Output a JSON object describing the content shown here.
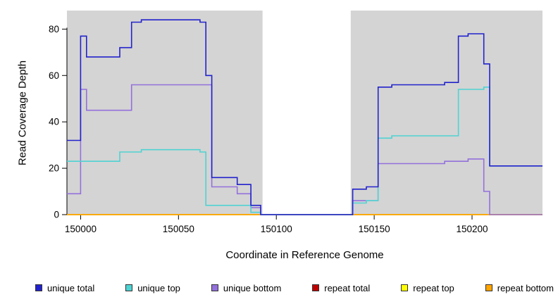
{
  "figure": {
    "xlabel": "Coordinate in Reference Genome",
    "ylabel": "Read Coverage Depth"
  },
  "legend": {
    "items": [
      {
        "label": "unique total",
        "color": "#2222CC"
      },
      {
        "label": "unique top",
        "color": "#4FD2D2"
      },
      {
        "label": "unique bottom",
        "color": "#9370DB"
      },
      {
        "label": "repeat total",
        "color": "#C00000"
      },
      {
        "label": "repeat top",
        "color": "#FFFF00"
      },
      {
        "label": "repeat bottom",
        "color": "#FFA500"
      }
    ]
  },
  "chart_data": {
    "type": "line",
    "step": true,
    "title": "",
    "xlabel": "Coordinate in Reference Genome",
    "ylabel": "Read Coverage Depth",
    "xlim": [
      149993,
      150236
    ],
    "ylim": [
      0,
      88
    ],
    "xticks": [
      150000,
      150050,
      150100,
      150150,
      150200
    ],
    "xtick_labels": [
      "150000",
      "150050",
      "150100",
      "150150",
      "150200"
    ],
    "yticks": [
      0,
      20,
      40,
      60,
      80
    ],
    "ytick_labels": [
      "0",
      "20",
      "40",
      "60",
      "80"
    ],
    "grid": false,
    "legend_position": "bottom",
    "plot_background": "#D4D4D4",
    "gap_region": {
      "x0": 150093,
      "x1": 150138,
      "color": "#FFFFFF"
    },
    "background_regions": [
      {
        "x0": 149993,
        "x1": 150093,
        "color": "#D4D4D4"
      },
      {
        "x0": 150093,
        "x1": 150138,
        "color": "#FFFFFF"
      },
      {
        "x0": 150138,
        "x1": 150236,
        "color": "#D4D4D4"
      }
    ],
    "series": [
      {
        "name": "repeat total",
        "color": "#C00000",
        "points": [
          [
            149993,
            0
          ],
          [
            150236,
            0
          ]
        ]
      },
      {
        "name": "repeat top",
        "color": "#FFFF00",
        "points": [
          [
            149993,
            0
          ],
          [
            150236,
            0
          ]
        ]
      },
      {
        "name": "repeat bottom",
        "color": "#FFA500",
        "points": [
          [
            149993,
            0
          ],
          [
            150236,
            0
          ]
        ]
      },
      {
        "name": "unique bottom",
        "color": "#9370DB",
        "points": [
          [
            149993,
            9
          ],
          [
            150000,
            54
          ],
          [
            150003,
            45
          ],
          [
            150026,
            56
          ],
          [
            150067,
            12
          ],
          [
            150080,
            9
          ],
          [
            150087,
            3
          ],
          [
            150092,
            0
          ],
          [
            150139,
            6
          ],
          [
            150152,
            22
          ],
          [
            150186,
            23
          ],
          [
            150198,
            24
          ],
          [
            150206,
            10
          ],
          [
            150209,
            0
          ],
          [
            150236,
            0
          ]
        ]
      },
      {
        "name": "unique top",
        "color": "#4FD2D2",
        "points": [
          [
            149993,
            23
          ],
          [
            150020,
            27
          ],
          [
            150031,
            28
          ],
          [
            150061,
            27
          ],
          [
            150064,
            4
          ],
          [
            150087,
            1
          ],
          [
            150092,
            0
          ],
          [
            150139,
            5
          ],
          [
            150146,
            6
          ],
          [
            150152,
            33
          ],
          [
            150159,
            34
          ],
          [
            150193,
            54
          ],
          [
            150206,
            55
          ],
          [
            150209,
            21
          ],
          [
            150236,
            21
          ]
        ]
      },
      {
        "name": "unique total",
        "color": "#2222CC",
        "points": [
          [
            149993,
            32
          ],
          [
            150000,
            77
          ],
          [
            150003,
            68
          ],
          [
            150020,
            72
          ],
          [
            150026,
            83
          ],
          [
            150031,
            84
          ],
          [
            150061,
            83
          ],
          [
            150064,
            60
          ],
          [
            150067,
            16
          ],
          [
            150080,
            13
          ],
          [
            150087,
            4
          ],
          [
            150092,
            0
          ],
          [
            150139,
            11
          ],
          [
            150146,
            12
          ],
          [
            150152,
            55
          ],
          [
            150159,
            56
          ],
          [
            150186,
            57
          ],
          [
            150193,
            77
          ],
          [
            150198,
            78
          ],
          [
            150206,
            65
          ],
          [
            150209,
            21
          ],
          [
            150236,
            21
          ]
        ]
      }
    ]
  }
}
